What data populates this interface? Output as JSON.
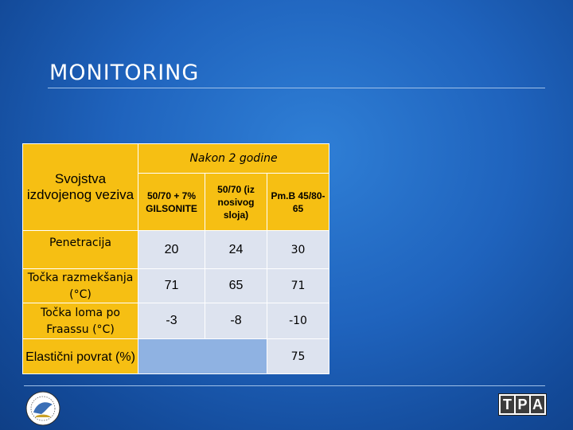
{
  "slide": {
    "title": "MONITORING"
  },
  "table": {
    "top_header": "Nakon 2 godine",
    "property_header": "Svojstva izdvojenog veziva",
    "columns": [
      "50/70 + 7% GILSONITE",
      "50/70 (iz nosivog sloja)",
      "Pm.B 45/80-65"
    ],
    "rows": [
      {
        "label": "Penetracija",
        "values": [
          "20",
          "24",
          "30"
        ]
      },
      {
        "label": "Točka razmekšanja (°C)",
        "values": [
          "71",
          "65",
          "71"
        ]
      },
      {
        "label": "Točka loma po Fraassu (°C)",
        "values": [
          "-3",
          "-8",
          "-10"
        ]
      },
      {
        "label": "Elastični povrat (%)",
        "values": [
          "",
          "",
          "75"
        ]
      }
    ]
  },
  "logos": {
    "left_icon": "organization-seal-icon",
    "right_logo": [
      "T",
      "P",
      "A"
    ]
  }
}
